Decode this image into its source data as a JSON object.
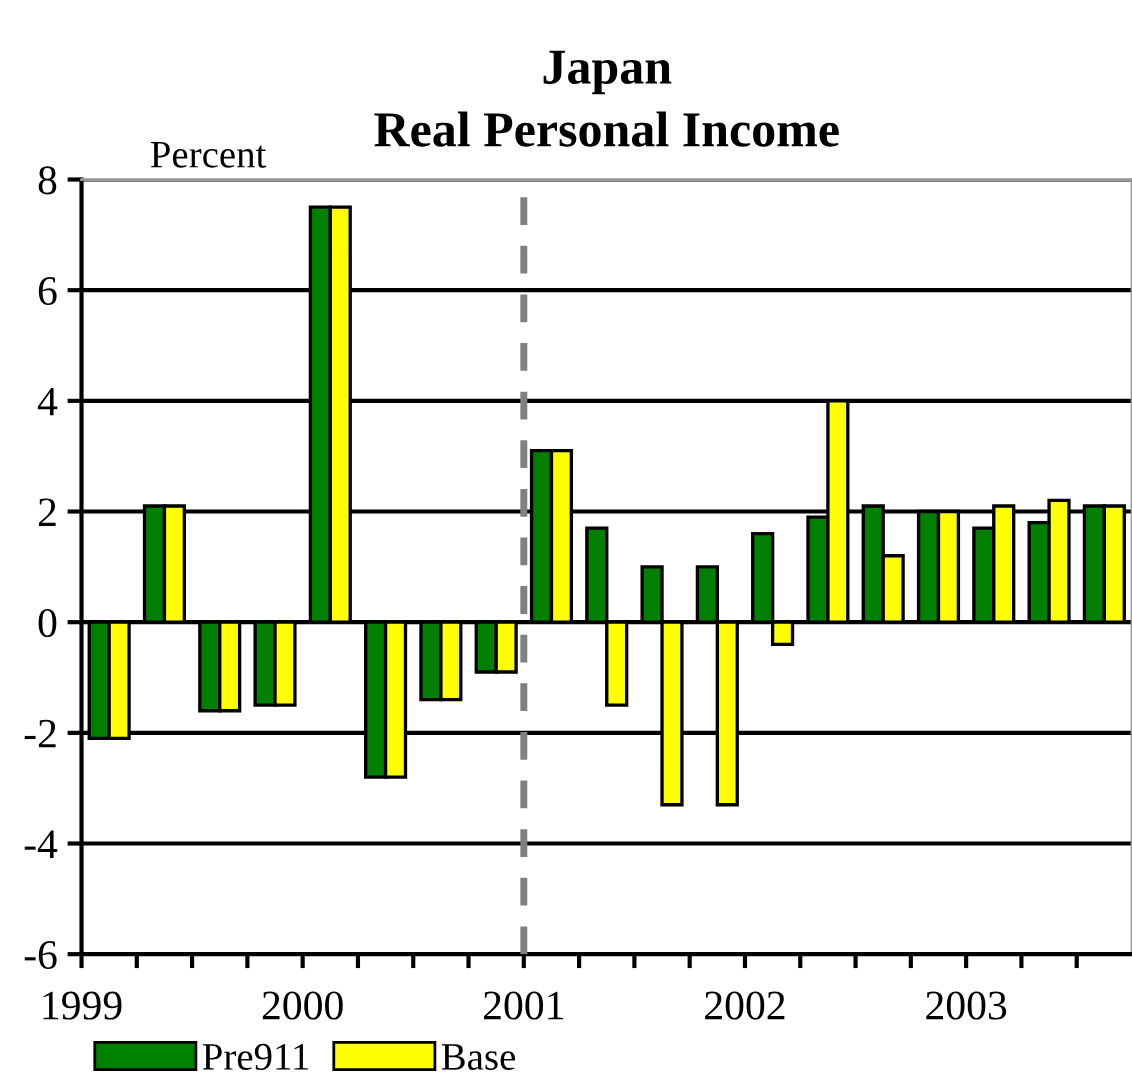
{
  "chart_data": {
    "type": "bar",
    "title": "Japan\nReal Personal Income",
    "ylabel": "Percent",
    "x": [
      1999.125,
      1999.375,
      1999.625,
      1999.875,
      2000.125,
      2000.375,
      2000.625,
      2000.875,
      2001.125,
      2001.375,
      2001.625,
      2001.875,
      2002.125,
      2002.375,
      2002.625,
      2002.875,
      2003.125,
      2003.375,
      2003.625
    ],
    "series": [
      {
        "name": "Pre911",
        "color": "#008000",
        "values": [
          -2.1,
          2.1,
          -1.6,
          -1.5,
          7.5,
          -2.8,
          -1.4,
          -0.9,
          3.1,
          1.7,
          1.0,
          1.0,
          1.6,
          1.9,
          2.1,
          2.0,
          1.7,
          1.8,
          2.1
        ]
      },
      {
        "name": "Base",
        "color": "#ffff00",
        "values": [
          -2.1,
          2.1,
          -1.6,
          -1.5,
          7.5,
          -2.8,
          -1.4,
          -0.9,
          3.1,
          -1.5,
          -3.3,
          -3.3,
          -0.4,
          4.0,
          1.2,
          2.0,
          2.1,
          2.2,
          2.1
        ]
      }
    ],
    "xlim": [
      1999,
      2003.75
    ],
    "xticks": [
      {
        "value": 1999,
        "label": "1999"
      },
      {
        "value": 1999.25,
        "label": null
      },
      {
        "value": 1999.5,
        "label": null
      },
      {
        "value": 1999.75,
        "label": null
      },
      {
        "value": 2000,
        "label": "2000"
      },
      {
        "value": 2000.25,
        "label": null
      },
      {
        "value": 2000.5,
        "label": null
      },
      {
        "value": 2000.75,
        "label": null
      },
      {
        "value": 2001,
        "label": "2001"
      },
      {
        "value": 2001.25,
        "label": null
      },
      {
        "value": 2001.5,
        "label": null
      },
      {
        "value": 2001.75,
        "label": null
      },
      {
        "value": 2002,
        "label": "2002"
      },
      {
        "value": 2002.25,
        "label": null
      },
      {
        "value": 2002.5,
        "label": null
      },
      {
        "value": 2002.75,
        "label": null
      },
      {
        "value": 2003,
        "label": "2003"
      },
      {
        "value": 2003.25,
        "label": null
      },
      {
        "value": 2003.5,
        "label": null
      }
    ],
    "ylim": [
      -6,
      8
    ],
    "yticks": [
      -6,
      -4,
      -2,
      0,
      2,
      4,
      6,
      8
    ],
    "ref_lines": [
      {
        "axis": "x",
        "value": 2001,
        "color": "#808080",
        "line_style": "dashed"
      }
    ],
    "grid": "y",
    "legend": "bottom left"
  }
}
